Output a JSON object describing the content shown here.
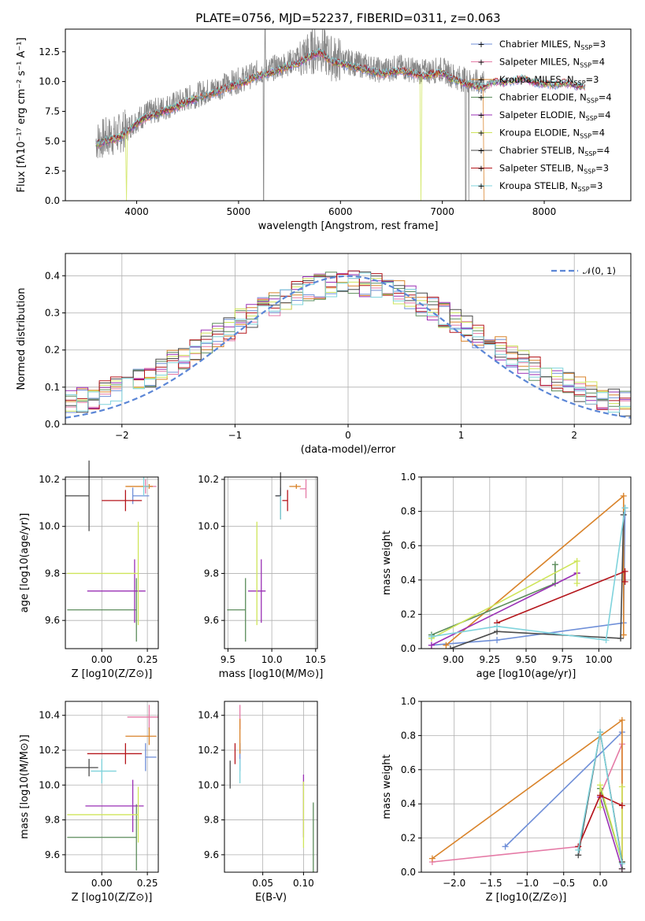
{
  "colors": [
    "#6f8fd8",
    "#e57aa6",
    "#d9832a",
    "#5b8c5b",
    "#9a2fb5",
    "#cfe55a",
    "#4a4a4a",
    "#b5161c",
    "#7fd3dc"
  ],
  "chart_data": [
    {
      "type": "line",
      "title": "PLATE=0756, MJD=52237, FIBERID=0311, z=0.063",
      "xlabel": "wavelength [Angstrom, rest frame]",
      "ylabel": "Flux [fλ10⁻¹⁷ erg cm⁻² s⁻¹ A⁻¹]",
      "xlim": [
        3300,
        8850
      ],
      "ylim": [
        0,
        14.4
      ],
      "xticks": [
        "4000",
        "5000",
        "6000",
        "7000",
        "8000"
      ],
      "yticks": [
        "0.0",
        "2.5",
        "5.0",
        "7.5",
        "10.0",
        "12.5"
      ],
      "legend_position": "right",
      "series": [
        {
          "name": "Chabrier MILES, N_SSP=3"
        },
        {
          "name": "Salpeter MILES, N_SSP=4"
        },
        {
          "name": "Kroupa MILES, N_SSP=3"
        },
        {
          "name": "Chabrier ELODIE, N_SSP=4"
        },
        {
          "name": "Salpeter ELODIE, N_SSP=4"
        },
        {
          "name": "Kroupa ELODIE, N_SSP=4"
        },
        {
          "name": "Chabrier STELIB, N_SSP=4"
        },
        {
          "name": "Salpeter STELIB, N_SSP=3"
        },
        {
          "name": "Kroupa STELIB, N_SSP=3"
        }
      ],
      "continuum": {
        "x": [
          3600,
          3700,
          3800,
          3900,
          4000,
          4100,
          4200,
          4300,
          4400,
          4500,
          4600,
          4700,
          4800,
          4900,
          5000,
          5100,
          5200,
          5300,
          5400,
          5500,
          5600,
          5700,
          5800,
          5900,
          6000,
          6100,
          6200,
          6300,
          6400,
          6500,
          6600,
          6700,
          6800,
          6900,
          7000,
          7100,
          7200,
          7300,
          7400,
          7500,
          7600,
          7700,
          7800,
          7900,
          8000,
          8100,
          8200,
          8300,
          8400
        ],
        "y": [
          5.0,
          5.3,
          5.5,
          6.0,
          6.8,
          7.3,
          7.6,
          7.9,
          8.2,
          8.6,
          8.9,
          9.2,
          9.5,
          9.8,
          10.1,
          10.4,
          10.8,
          11.0,
          11.3,
          11.6,
          11.9,
          12.4,
          12.8,
          12.0,
          11.8,
          11.6,
          11.4,
          11.2,
          10.9,
          11.1,
          11.2,
          11.0,
          10.8,
          10.9,
          11.0,
          10.5,
          10.2,
          10.0,
          9.8,
          10.3,
          10.2,
          10.4,
          10.5,
          10.2,
          10.1,
          10.0,
          10.2,
          10.0,
          9.8
        ]
      }
    },
    {
      "type": "histogram",
      "xlabel": "(data-model)/error",
      "ylabel": "Normed distribution",
      "xlim": [
        -2.5,
        2.5
      ],
      "ylim": [
        0,
        0.46
      ],
      "xticks": [
        "−2",
        "−1",
        "0",
        "1",
        "2"
      ],
      "yticks": [
        "0.0",
        "0.1",
        "0.2",
        "0.3",
        "0.4"
      ],
      "legend": "𝒩(0, 1)",
      "reference_curve": "normal(0,1)"
    },
    {
      "type": "scatter",
      "xlabel": "Z [log10(Z/Z⊙)]",
      "ylabel": "age [log10(age/yr)]",
      "xlim": [
        -0.2,
        0.31
      ],
      "ylim": [
        9.48,
        10.21
      ],
      "xticks": [
        "0.00",
        "0.25"
      ],
      "yticks": [
        "9.6",
        "9.8",
        "10.0",
        "10.2"
      ],
      "points": [
        {
          "x": 0.17,
          "y": 10.13,
          "xerr": [
            0.0,
            0.09
          ],
          "yerr": 0.035
        },
        {
          "x": 0.24,
          "y": 10.17,
          "xerr": [
            0.0,
            0.06
          ],
          "yerr": 0.03
        },
        {
          "x": 0.26,
          "y": 10.17,
          "xerr": [
            0.13,
            0.02
          ],
          "yerr": 0.01
        },
        {
          "x": 0.19,
          "y": 9.645,
          "xerr": [
            0.38,
            0.0
          ],
          "yerr": 0.135
        },
        {
          "x": 0.18,
          "y": 9.725,
          "xerr": [
            0.26,
            0.06
          ],
          "yerr": 0.135
        },
        {
          "x": 0.2,
          "y": 9.8,
          "xerr": [
            0.39,
            0.0
          ],
          "yerr": 0.22
        },
        {
          "x": -0.07,
          "y": 10.13,
          "xerr": [
            0.13,
            0.0
          ],
          "yerr": 0.15
        },
        {
          "x": 0.13,
          "y": 10.11,
          "xerr": [
            0.13,
            0.09
          ],
          "yerr": 0.045
        },
        {
          "x": 0.23,
          "y": 10.17,
          "xerr": [
            0.0,
            0.03
          ],
          "yerr": 0.04
        }
      ]
    },
    {
      "type": "scatter",
      "xlabel": "mass [log10(M/M⊙)]",
      "ylabel": "",
      "xlim": [
        9.46,
        10.52
      ],
      "ylim": [
        9.48,
        10.21
      ],
      "xticks": [
        "9.5",
        "10.0",
        "10.5"
      ],
      "yticks": [
        "9.6",
        "9.8",
        "10.0",
        "10.2"
      ],
      "points": [
        {
          "x": 10.1,
          "y": 10.13,
          "xerr": [
            0.05,
            0.0
          ],
          "yerr": 0.035
        },
        {
          "x": 10.39,
          "y": 10.16,
          "xerr": [
            0.07,
            0.0
          ],
          "yerr": 0.04
        },
        {
          "x": 10.28,
          "y": 10.17,
          "xerr": [
            0.08,
            0.05
          ],
          "yerr": 0.01
        },
        {
          "x": 9.7,
          "y": 9.645,
          "xerr": [
            0.21,
            0.0
          ],
          "yerr": 0.135
        },
        {
          "x": 9.88,
          "y": 9.725,
          "xerr": [
            0.15,
            0.05
          ],
          "yerr": 0.135
        },
        {
          "x": 9.83,
          "y": 9.8,
          "xerr": [
            0.0,
            0.0
          ],
          "yerr": 0.22
        },
        {
          "x": 10.1,
          "y": 10.13,
          "xerr": [
            0.06,
            0.0
          ],
          "yerr": 0.1
        },
        {
          "x": 10.18,
          "y": 10.11,
          "xerr": [
            0.06,
            0.0
          ],
          "yerr": 0.045
        },
        {
          "x": 10.1,
          "y": 10.08,
          "xerr": [
            0.0,
            0.0
          ],
          "yerr": 0.05
        }
      ]
    },
    {
      "type": "line",
      "xlabel": "age [log10(age/yr)]",
      "ylabel": "mass weight",
      "xlim": [
        8.78,
        10.22
      ],
      "ylim": [
        0,
        1.0
      ],
      "xticks": [
        "9.00",
        "9.25",
        "9.50",
        "9.75",
        "10.00"
      ],
      "yticks": [
        "0.0",
        "0.2",
        "0.4",
        "0.6",
        "0.8",
        "1.0"
      ],
      "series": [
        {
          "x": [
            8.85,
            9.3,
            10.17,
            10.18
          ],
          "y": [
            0.02,
            0.05,
            0.15,
            0.82
          ]
        },
        {
          "x": 8.85,
          "y": 0
        },
        {
          "x": [
            8.95,
            10.17,
            10.17
          ],
          "y": [
            0.02,
            0.89,
            0.08
          ]
        },
        {
          "x": [
            8.85,
            9.7,
            9.7
          ],
          "y": [
            0.08,
            0.38,
            0.49
          ]
        },
        {
          "x": [
            8.85,
            9.85,
            9.85
          ],
          "y": [
            0.02,
            0.44,
            0.44
          ]
        },
        {
          "x": [
            8.85,
            9.85,
            9.85
          ],
          "y": [
            0.06,
            0.51,
            0.38
          ]
        },
        {
          "x": [
            8.98,
            9.3,
            10.15,
            10.17
          ],
          "y": [
            0.0,
            0.1,
            0.06,
            0.78
          ]
        },
        {
          "x": [
            9.3,
            10.18,
            10.18
          ],
          "y": [
            0.15,
            0.45,
            0.39
          ]
        },
        {
          "x": [
            8.85,
            9.3,
            10.05,
            10.18
          ],
          "y": [
            0.07,
            0.13,
            0.05,
            0.82
          ]
        }
      ]
    },
    {
      "type": "scatter",
      "xlabel": "Z [log10(Z/Z⊙)]",
      "ylabel": "mass [log10(M/M⊙)]",
      "xlim": [
        -0.2,
        0.31
      ],
      "ylim": [
        9.5,
        10.48
      ],
      "xticks": [
        "0.00",
        "0.25"
      ],
      "yticks": [
        "9.6",
        "9.8",
        "10.0",
        "10.2",
        "10.4"
      ],
      "points": [
        {
          "x": 0.24,
          "y": 10.16,
          "xerr": [
            0.0,
            0.06
          ],
          "yerr": 0.08
        },
        {
          "x": 0.26,
          "y": 10.39,
          "xerr": [
            0.12,
            0.05
          ],
          "yerr": 0.07
        },
        {
          "x": 0.26,
          "y": 10.28,
          "xerr": [
            0.13,
            0.04
          ],
          "yerr": 0.05
        },
        {
          "x": 0.19,
          "y": 9.7,
          "xerr": [
            0.38,
            0.0
          ],
          "yerr": 0.19
        },
        {
          "x": 0.17,
          "y": 9.88,
          "xerr": [
            0.26,
            0.06
          ],
          "yerr": 0.15
        },
        {
          "x": 0.2,
          "y": 9.83,
          "xerr": [
            0.39,
            0.0
          ],
          "yerr": 0.16
        },
        {
          "x": -0.07,
          "y": 10.1,
          "xerr": [
            0.13,
            0.05
          ],
          "yerr": 0.05
        },
        {
          "x": 0.13,
          "y": 10.18,
          "xerr": [
            0.21,
            0.09
          ],
          "yerr": 0.06
        },
        {
          "x": 0.0,
          "y": 10.08,
          "xerr": [
            0.06,
            0.08
          ],
          "yerr": 0.07
        }
      ]
    },
    {
      "type": "scatter",
      "xlabel": "E(B-V)",
      "ylabel": "",
      "xlim": [
        0.003,
        0.117
      ],
      "ylim": [
        9.5,
        10.48
      ],
      "xticks": [
        "0.05",
        "0.10"
      ],
      "yticks": [
        "9.6",
        "9.8",
        "10.0",
        "10.2",
        "10.4"
      ],
      "points": [
        {
          "x": 0.022,
          "y": 10.16,
          "xerr": [
            0,
            0
          ],
          "yerr": 0.08
        },
        {
          "x": 0.022,
          "y": 10.39,
          "xerr": [
            0,
            0
          ],
          "yerr": 0.07
        },
        {
          "x": 0.022,
          "y": 10.28,
          "xerr": [
            0,
            0
          ],
          "yerr": 0.1
        },
        {
          "x": 0.112,
          "y": 9.7,
          "xerr": [
            0,
            0
          ],
          "yerr": 0.2
        },
        {
          "x": 0.1,
          "y": 9.88,
          "xerr": [
            0,
            0
          ],
          "yerr": 0.18
        },
        {
          "x": 0.1,
          "y": 9.83,
          "xerr": [
            0,
            0
          ],
          "yerr": 0.19
        },
        {
          "x": 0.01,
          "y": 10.06,
          "xerr": [
            0,
            0
          ],
          "yerr": 0.08
        },
        {
          "x": 0.016,
          "y": 10.18,
          "xerr": [
            0,
            0
          ],
          "yerr": 0.06
        },
        {
          "x": 0.022,
          "y": 10.08,
          "xerr": [
            0,
            0
          ],
          "yerr": 0.07
        }
      ]
    },
    {
      "type": "line",
      "xlabel": "Z [log10(Z/Z⊙)]",
      "ylabel": "mass weight",
      "xlim": [
        -2.45,
        0.42
      ],
      "ylim": [
        0,
        1.0
      ],
      "xticks": [
        "−2.0",
        "−1.5",
        "−1.0",
        "−0.5",
        "0.0"
      ],
      "yticks": [
        "0.0",
        "0.2",
        "0.4",
        "0.6",
        "0.8",
        "1.0"
      ],
      "series": [
        {
          "x": [
            -1.3,
            0.3
          ],
          "y": [
            0.15,
            0.82
          ]
        },
        {
          "x": [
            -2.3,
            -0.3,
            0.3,
            0.3
          ],
          "y": [
            0.06,
            0.15,
            0.75,
            0.02
          ]
        },
        {
          "x": [
            -2.3,
            0.3,
            0.3
          ],
          "y": [
            0.08,
            0.89,
            0.02
          ]
        },
        {
          "x": [
            0.0,
            0.0,
            0.3
          ],
          "y": [
            0.38,
            0.49,
            0.06
          ]
        },
        {
          "x": [
            0.0,
            0.0,
            0.3
          ],
          "y": [
            0.44,
            0.44,
            0.02
          ]
        },
        {
          "x": [
            0.0,
            0.0,
            0.3,
            0.3
          ],
          "y": [
            0.38,
            0.51,
            0.06,
            0.5
          ]
        },
        {
          "x": [
            -0.3,
            0.0,
            0.3,
            0.3
          ],
          "y": [
            0.1,
            0.82,
            0.06,
            0.02
          ]
        },
        {
          "x": [
            -0.3,
            0.0,
            0.3
          ],
          "y": [
            0.15,
            0.45,
            0.39
          ]
        },
        {
          "x": [
            -0.3,
            0.0,
            0.3
          ],
          "y": [
            0.13,
            0.82,
            0.05
          ]
        }
      ]
    }
  ]
}
